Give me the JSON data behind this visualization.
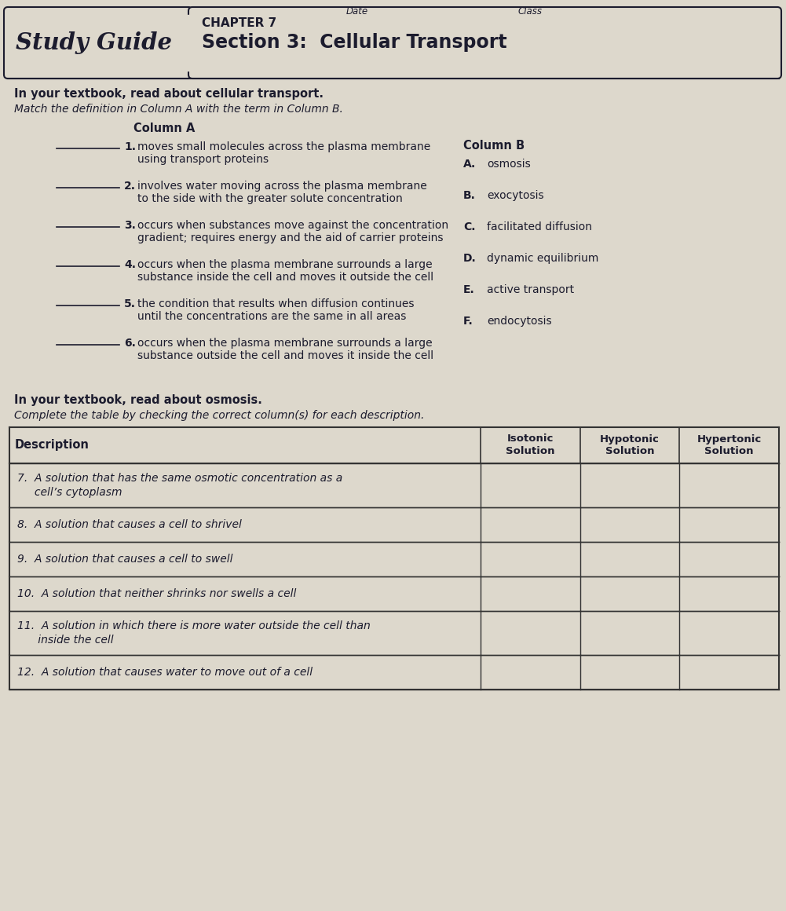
{
  "bg_color": "#ddd8cc",
  "text_color": "#1c1c2e",
  "title_study_guide": "Study Guide",
  "chapter": "CHAPTER 7",
  "section": "Section 3:  Cellular Transport",
  "date_label": "Date",
  "class_label": "Class",
  "header1_bold": "In your textbook, read about cellular transport.",
  "header1_italic": "Match the definition in Column A with the term in Column B.",
  "col_a_header": "Column A",
  "col_b_header": "Column B",
  "col_a_items": [
    {
      "num": "1.",
      "text": "moves small molecules across the plasma membrane\nusing transport proteins"
    },
    {
      "num": "2.",
      "text": "involves water moving across the plasma membrane\nto the side with the greater solute concentration"
    },
    {
      "num": "3.",
      "text": "occurs when substances move against the concentration\ngradient; requires energy and the aid of carrier proteins"
    },
    {
      "num": "4.",
      "text": "occurs when the plasma membrane surrounds a large\nsubstance inside the cell and moves it outside the cell"
    },
    {
      "num": "5.",
      "text": "the condition that results when diffusion continues\nuntil the concentrations are the same in all areas"
    },
    {
      "num": "6.",
      "text": "occurs when the plasma membrane surrounds a large\nsubstance outside the cell and moves it inside the cell"
    }
  ],
  "col_b_items": [
    {
      "letter": "A.",
      "text": "osmosis"
    },
    {
      "letter": "B.",
      "text": "exocytosis"
    },
    {
      "letter": "C.",
      "text": "facilitated diffusion"
    },
    {
      "letter": "D.",
      "text": "dynamic equilibrium"
    },
    {
      "letter": "E.",
      "text": "active transport"
    },
    {
      "letter": "F.",
      "text": "endocytosis"
    }
  ],
  "header2_bold": "In your textbook, read about osmosis.",
  "header2_italic": "Complete the table by checking the correct column(s) for each description.",
  "table_col_headers": [
    "Description",
    "Isotonic\nSolution",
    "Hypotonic\nSolution",
    "Hypertonic\nSolution"
  ],
  "table_rows": [
    {
      "text": "7.  A solution that has the same osmotic concentration as a\n     cell’s cytoplasm",
      "lines": 2
    },
    {
      "text": "8.  A solution that causes a cell to shrivel",
      "lines": 1
    },
    {
      "text": "9.  A solution that causes a cell to swell",
      "lines": 1
    },
    {
      "text": "10.  A solution that neither shrinks nor swells a cell",
      "lines": 1
    },
    {
      "text": "11.  A solution in which there is more water outside the cell than\n      inside the cell",
      "lines": 2
    },
    {
      "text": "12.  A solution that causes water to move out of a cell",
      "lines": 1
    }
  ],
  "line_color": "#333333"
}
